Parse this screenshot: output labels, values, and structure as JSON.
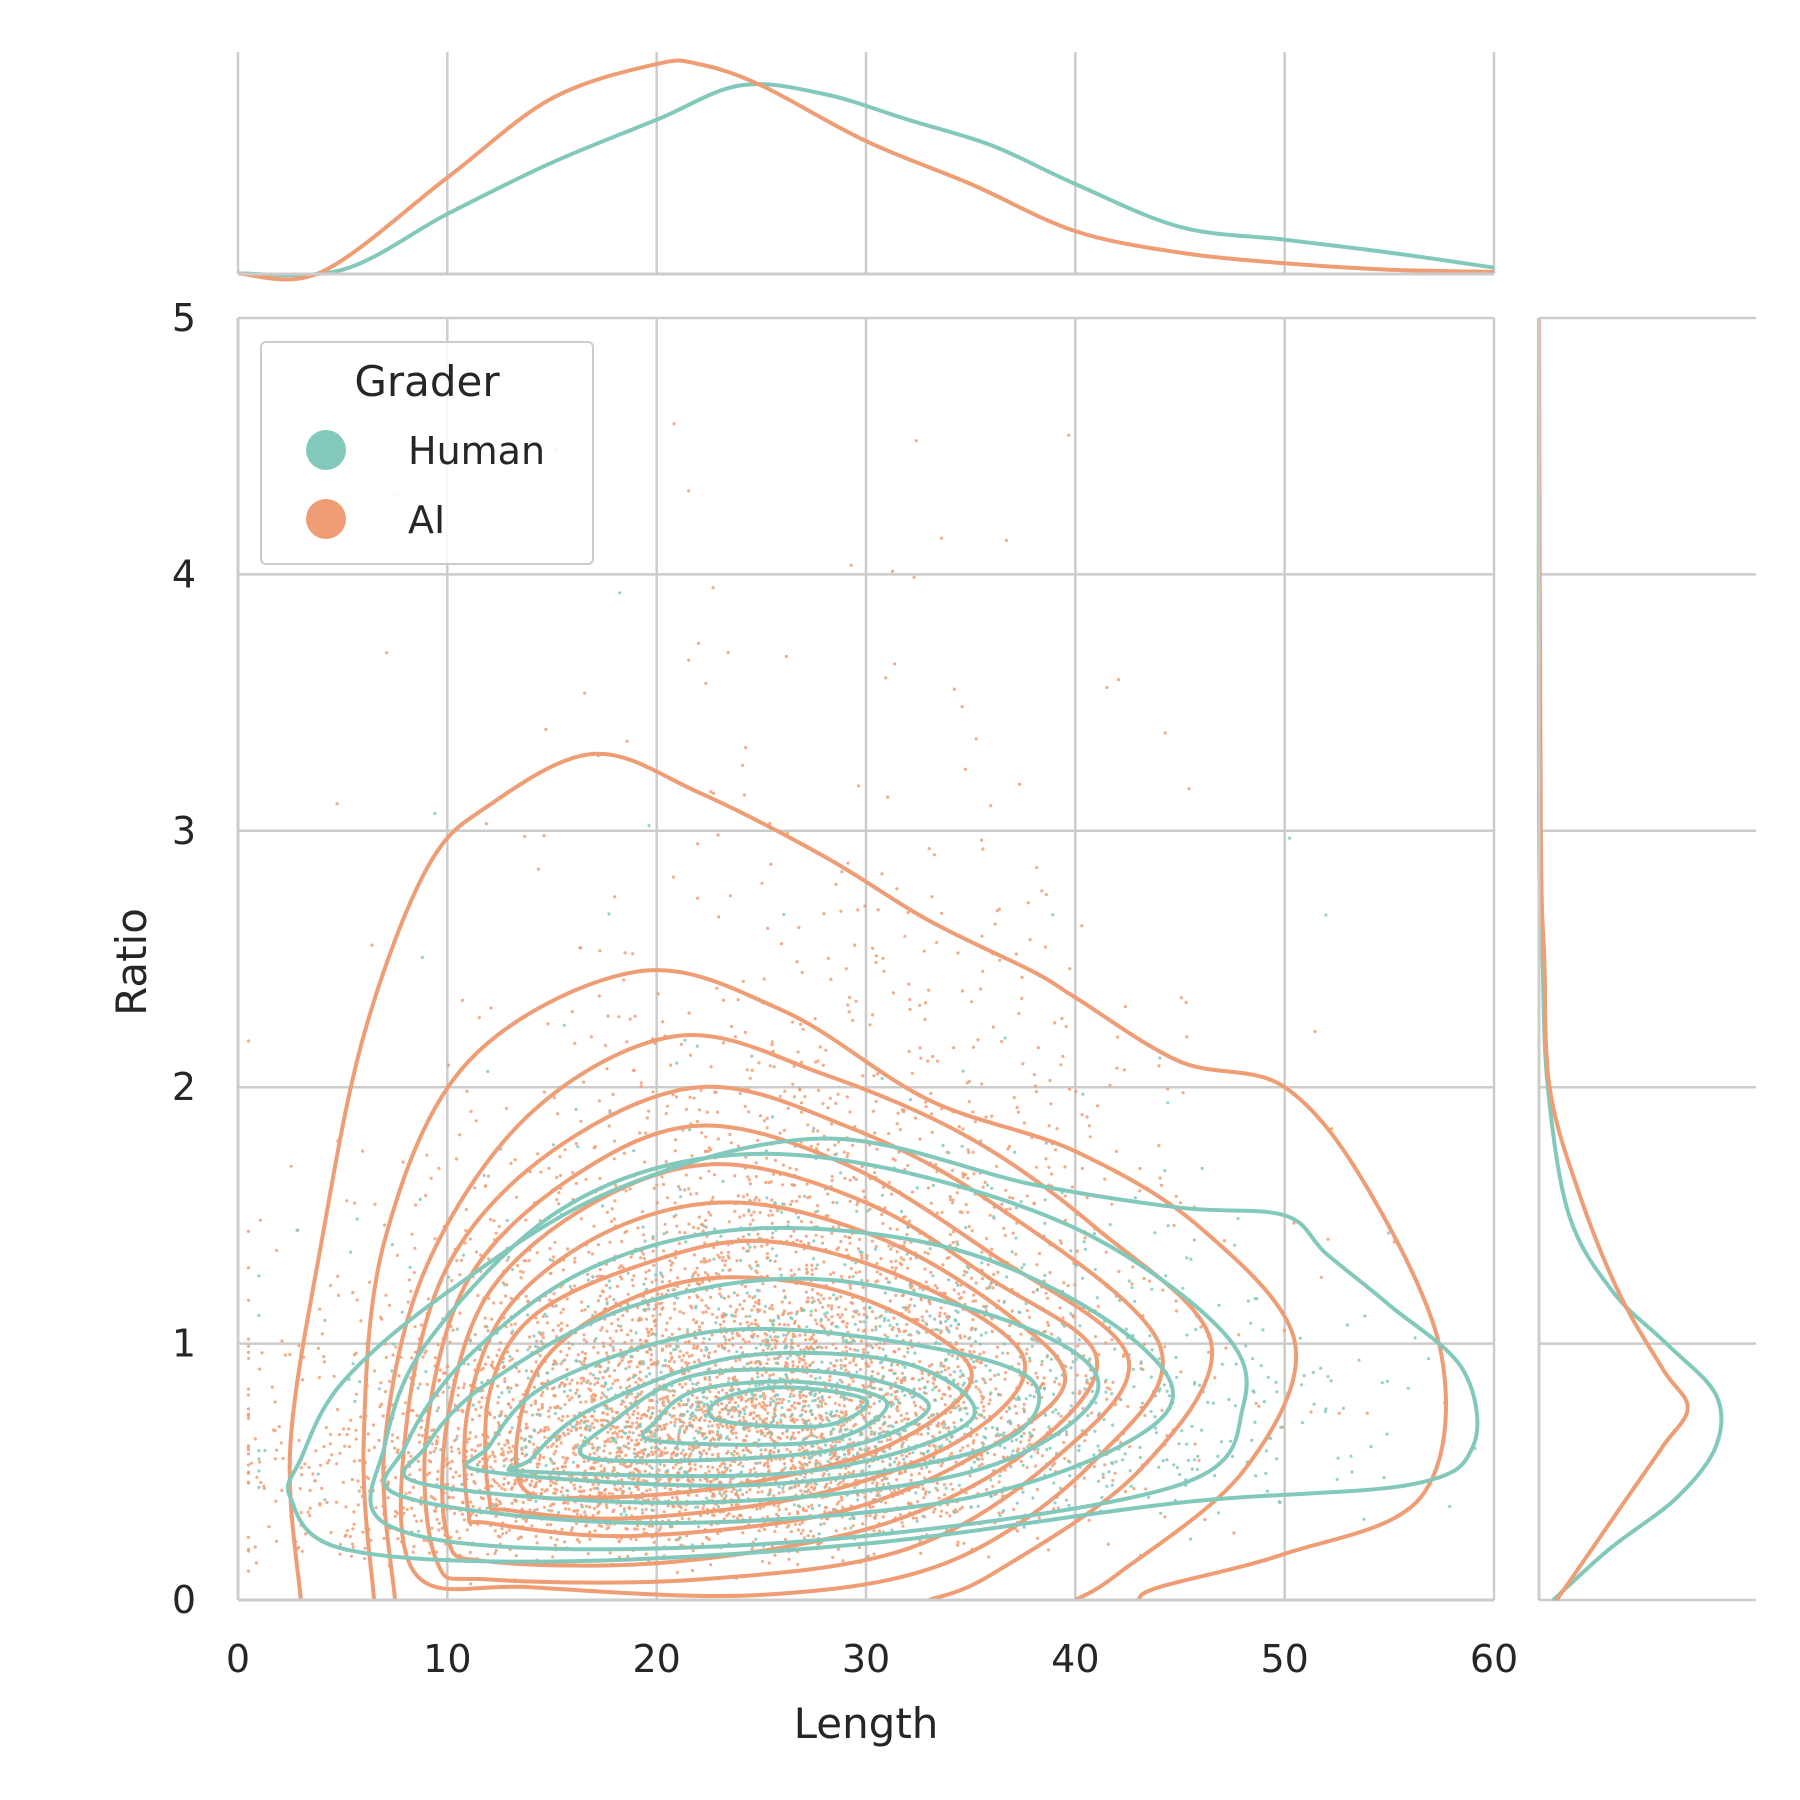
{
  "chart_data": {
    "type": "scatter",
    "xlabel": "Length",
    "ylabel": "Ratio",
    "xlim": [
      0,
      60
    ],
    "ylim": [
      0,
      5
    ],
    "x_ticks": [
      0,
      10,
      20,
      30,
      40,
      50,
      60
    ],
    "y_ticks": [
      0,
      1,
      2,
      3,
      4,
      5
    ],
    "grid": true,
    "legend": {
      "title": "Grader",
      "placement": "top-left"
    },
    "series": [
      {
        "name": "Human",
        "color": "#82c9bc",
        "marginal_x_density": [
          [
            0,
            0.002
          ],
          [
            5,
            0.02
          ],
          [
            10,
            0.28
          ],
          [
            15,
            0.52
          ],
          [
            20,
            0.72
          ],
          [
            24,
            0.88
          ],
          [
            28,
            0.84
          ],
          [
            32,
            0.72
          ],
          [
            36,
            0.6
          ],
          [
            40,
            0.42
          ],
          [
            45,
            0.22
          ],
          [
            50,
            0.16
          ],
          [
            55,
            0.1
          ],
          [
            60,
            0.03
          ]
        ],
        "marginal_y_density": [
          [
            0,
            0.08
          ],
          [
            0.2,
            0.4
          ],
          [
            0.4,
            0.78
          ],
          [
            0.6,
            1.0
          ],
          [
            0.8,
            1.0
          ],
          [
            1.0,
            0.72
          ],
          [
            1.2,
            0.42
          ],
          [
            1.5,
            0.17
          ],
          [
            2.0,
            0.05
          ],
          [
            2.5,
            0.02
          ],
          [
            3.0,
            0.0
          ],
          [
            5.0,
            0.0
          ]
        ],
        "contours": [
          [
            [
              2.5,
              0.4
            ],
            [
              5,
              0.2
            ],
            [
              15,
              0.15
            ],
            [
              30,
              0.22
            ],
            [
              45,
              0.38
            ],
            [
              56,
              0.45
            ],
            [
              59,
              0.6
            ],
            [
              58.5,
              0.9
            ],
            [
              55,
              1.15
            ],
            [
              52,
              1.35
            ],
            [
              50,
              1.5
            ],
            [
              45,
              1.53
            ],
            [
              38,
              1.62
            ],
            [
              28,
              1.8
            ],
            [
              18,
              1.6
            ],
            [
              10,
              1.2
            ],
            [
              5,
              0.85
            ],
            [
              3,
              0.55
            ],
            [
              2.5,
              0.4
            ]
          ],
          [
            [
              7,
              0.3
            ],
            [
              15,
              0.2
            ],
            [
              30,
              0.25
            ],
            [
              45,
              0.45
            ],
            [
              48,
              0.75
            ],
            [
              47,
              1.05
            ],
            [
              40,
              1.45
            ],
            [
              30,
              1.7
            ],
            [
              22,
              1.72
            ],
            [
              15,
              1.5
            ],
            [
              9,
              1.0
            ],
            [
              7,
              0.6
            ],
            [
              7,
              0.3
            ]
          ],
          [
            [
              8,
              0.4
            ],
            [
              20,
              0.3
            ],
            [
              35,
              0.4
            ],
            [
              44,
              0.7
            ],
            [
              43,
              1.0
            ],
            [
              35,
              1.35
            ],
            [
              25,
              1.45
            ],
            [
              17,
              1.3
            ],
            [
              11,
              0.95
            ],
            [
              8,
              0.6
            ],
            [
              8,
              0.4
            ]
          ],
          [
            [
              9,
              0.45
            ],
            [
              22,
              0.38
            ],
            [
              35,
              0.5
            ],
            [
              41,
              0.8
            ],
            [
              38,
              1.05
            ],
            [
              28,
              1.25
            ],
            [
              19,
              1.15
            ],
            [
              12,
              0.85
            ],
            [
              9,
              0.6
            ],
            [
              9,
              0.45
            ]
          ],
          [
            [
              12,
              0.5
            ],
            [
              25,
              0.45
            ],
            [
              36,
              0.6
            ],
            [
              38,
              0.85
            ],
            [
              32,
              1.0
            ],
            [
              23,
              1.05
            ],
            [
              15,
              0.85
            ],
            [
              12,
              0.6
            ],
            [
              12,
              0.5
            ]
          ],
          [
            [
              14,
              0.5
            ],
            [
              27,
              0.5
            ],
            [
              35,
              0.7
            ],
            [
              32,
              0.92
            ],
            [
              24,
              0.95
            ],
            [
              17,
              0.75
            ],
            [
              14,
              0.55
            ],
            [
              14,
              0.5
            ]
          ],
          [
            [
              17,
              0.55
            ],
            [
              28,
              0.58
            ],
            [
              33,
              0.75
            ],
            [
              29,
              0.88
            ],
            [
              22,
              0.88
            ],
            [
              18,
              0.7
            ],
            [
              17,
              0.55
            ]
          ],
          [
            [
              20,
              0.62
            ],
            [
              28,
              0.62
            ],
            [
              31,
              0.77
            ],
            [
              27,
              0.85
            ],
            [
              22,
              0.82
            ],
            [
              20,
              0.7
            ],
            [
              20,
              0.62
            ]
          ],
          [
            [
              23,
              0.7
            ],
            [
              28,
              0.68
            ],
            [
              30,
              0.78
            ],
            [
              26,
              0.83
            ],
            [
              23,
              0.78
            ],
            [
              23,
              0.7
            ]
          ]
        ],
        "points_shown": "dense scatter, ~0.1-2.8 ratio"
      },
      {
        "name": "AI",
        "color": "#ee9d74",
        "marginal_x_density": [
          [
            0,
            0.002
          ],
          [
            4,
            0.01
          ],
          [
            10,
            0.45
          ],
          [
            15,
            0.82
          ],
          [
            20,
            0.98
          ],
          [
            22,
            0.98
          ],
          [
            25,
            0.88
          ],
          [
            30,
            0.62
          ],
          [
            35,
            0.42
          ],
          [
            40,
            0.2
          ],
          [
            45,
            0.1
          ],
          [
            50,
            0.05
          ],
          [
            55,
            0.02
          ],
          [
            60,
            0.01
          ]
        ],
        "marginal_y_density": [
          [
            0,
            0.1
          ],
          [
            0.2,
            0.3
          ],
          [
            0.4,
            0.5
          ],
          [
            0.6,
            0.7
          ],
          [
            0.75,
            0.84
          ],
          [
            0.9,
            0.7
          ],
          [
            1.2,
            0.45
          ],
          [
            1.6,
            0.22
          ],
          [
            2.0,
            0.06
          ],
          [
            2.5,
            0.03
          ],
          [
            3.0,
            0.01
          ],
          [
            5.0,
            0.0
          ]
        ],
        "contours": [
          [
            [
              3,
              0
            ],
            [
              2.5,
              0.6
            ],
            [
              4,
              1.4
            ],
            [
              6,
              2.2
            ],
            [
              9,
              2.85
            ],
            [
              12,
              3.1
            ],
            [
              17,
              3.3
            ],
            [
              22,
              3.15
            ],
            [
              28,
              2.9
            ],
            [
              33,
              2.65
            ],
            [
              38,
              2.45
            ],
            [
              40,
              2.35
            ],
            [
              45,
              2.1
            ],
            [
              50,
              2.0
            ],
            [
              54,
              1.6
            ],
            [
              57.5,
              0.95
            ],
            [
              56.5,
              0.4
            ],
            [
              50,
              0.18
            ],
            [
              44,
              0.05
            ],
            [
              43,
              0
            ]
          ],
          [
            [
              6.5,
              0
            ],
            [
              6,
              0.6
            ],
            [
              7,
              1.4
            ],
            [
              11,
              2.1
            ],
            [
              19,
              2.45
            ],
            [
              26,
              2.3
            ],
            [
              33,
              1.95
            ],
            [
              40,
              1.75
            ],
            [
              46,
              1.45
            ],
            [
              50.5,
              1.0
            ],
            [
              48,
              0.5
            ],
            [
              42,
              0.1
            ],
            [
              40,
              0
            ]
          ],
          [
            [
              7.5,
              0
            ],
            [
              7,
              0.6
            ],
            [
              9,
              1.3
            ],
            [
              14,
              1.9
            ],
            [
              21,
              2.2
            ],
            [
              28,
              2.05
            ],
            [
              35,
              1.8
            ],
            [
              41,
              1.45
            ],
            [
              46.5,
              1.0
            ],
            [
              43,
              0.5
            ],
            [
              36,
              0.1
            ],
            [
              33,
              0
            ]
          ],
          [
            [
              8.5,
              0.1
            ],
            [
              8,
              0.65
            ],
            [
              10,
              1.3
            ],
            [
              15,
              1.75
            ],
            [
              22,
              2.0
            ],
            [
              29,
              1.85
            ],
            [
              36,
              1.55
            ],
            [
              44,
              1.0
            ],
            [
              41,
              0.55
            ],
            [
              34,
              0.15
            ],
            [
              25,
              0.02
            ],
            [
              14,
              0.05
            ],
            [
              8.5,
              0.1
            ]
          ],
          [
            [
              9.5,
              0.15
            ],
            [
              9,
              0.65
            ],
            [
              11,
              1.25
            ],
            [
              16,
              1.65
            ],
            [
              22,
              1.85
            ],
            [
              29,
              1.7
            ],
            [
              36,
              1.35
            ],
            [
              42.5,
              0.95
            ],
            [
              39,
              0.55
            ],
            [
              32,
              0.2
            ],
            [
              22,
              0.08
            ],
            [
              12,
              0.08
            ],
            [
              9.5,
              0.15
            ]
          ],
          [
            [
              10,
              0.25
            ],
            [
              10,
              0.7
            ],
            [
              12,
              1.2
            ],
            [
              17,
              1.55
            ],
            [
              23,
              1.7
            ],
            [
              30,
              1.55
            ],
            [
              36,
              1.25
            ],
            [
              41,
              0.95
            ],
            [
              38,
              0.6
            ],
            [
              31,
              0.3
            ],
            [
              21,
              0.15
            ],
            [
              12,
              0.15
            ],
            [
              10,
              0.25
            ]
          ],
          [
            [
              11,
              0.35
            ],
            [
              11,
              0.75
            ],
            [
              13,
              1.15
            ],
            [
              18,
              1.45
            ],
            [
              24,
              1.55
            ],
            [
              31,
              1.4
            ],
            [
              37,
              1.1
            ],
            [
              39.5,
              0.85
            ],
            [
              36,
              0.6
            ],
            [
              29,
              0.35
            ],
            [
              19,
              0.25
            ],
            [
              12,
              0.3
            ],
            [
              11,
              0.35
            ]
          ],
          [
            [
              12,
              0.4
            ],
            [
              12,
              0.8
            ],
            [
              14,
              1.1
            ],
            [
              19,
              1.3
            ],
            [
              25,
              1.4
            ],
            [
              32,
              1.25
            ],
            [
              37.5,
              0.95
            ],
            [
              35,
              0.65
            ],
            [
              28,
              0.42
            ],
            [
              19,
              0.32
            ],
            [
              13,
              0.35
            ],
            [
              12,
              0.4
            ]
          ],
          [
            [
              13.5,
              0.45
            ],
            [
              14,
              0.85
            ],
            [
              17,
              1.1
            ],
            [
              22,
              1.25
            ],
            [
              28,
              1.22
            ],
            [
              33,
              1.05
            ],
            [
              35,
              0.85
            ],
            [
              31,
              0.6
            ],
            [
              24,
              0.45
            ],
            [
              17,
              0.4
            ],
            [
              13.5,
              0.45
            ]
          ]
        ],
        "points_shown": "dense scatter, ~0-5 ratio"
      }
    ]
  }
}
